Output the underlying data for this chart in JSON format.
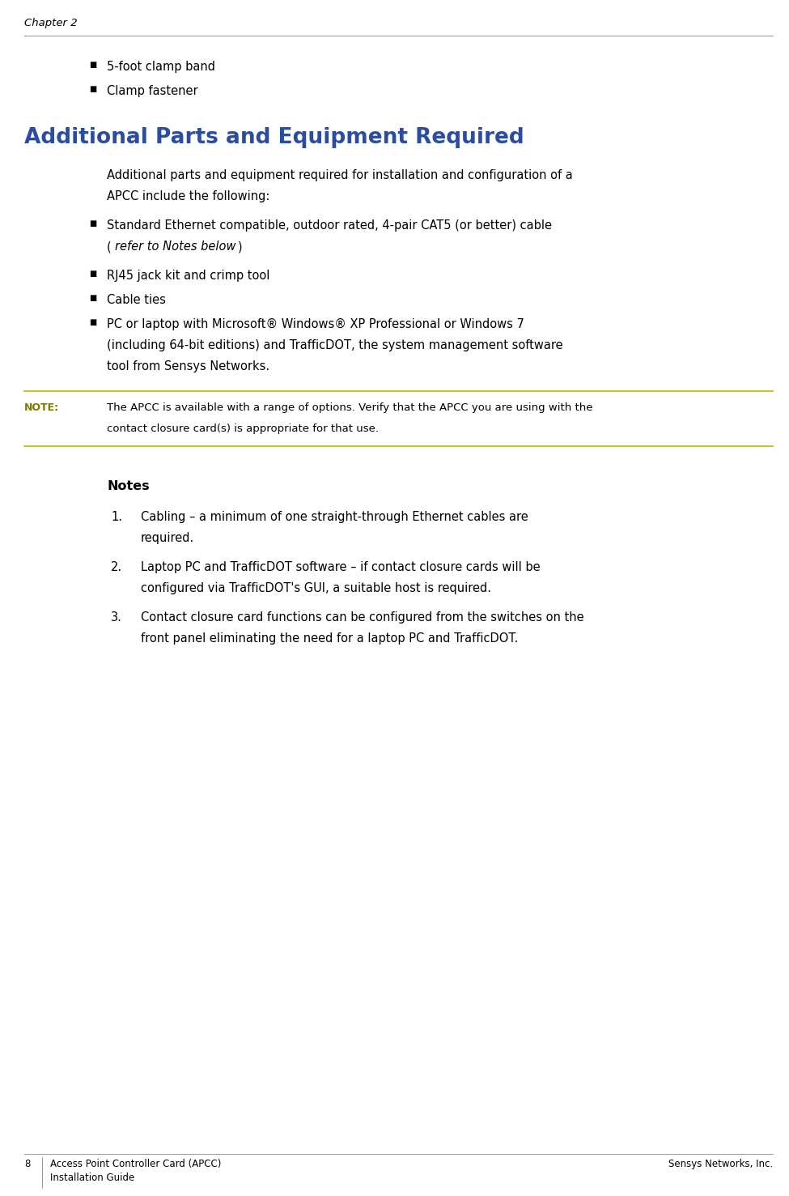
{
  "bg_color": "#ffffff",
  "page_width": 9.75,
  "page_height": 14.77,
  "dpi": 100,
  "text_color": "#000000",
  "chapter_header": "Chapter 2",
  "chapter_font_size": 9.5,
  "top_rule_color": "#999999",
  "section_title": "Additional Parts and Equipment Required",
  "section_title_size": 19,
  "section_title_color": "#2b4da0",
  "footer_page_num": "8",
  "footer_left1": "Access Point Controller Card (APCC)",
  "footer_left2": "Installation Guide",
  "footer_right": "Sensys Networks, Inc.",
  "footer_font_size": 8.5,
  "bullet_items_top": [
    "5-foot clamp band",
    "Clamp fastener"
  ],
  "intro_text_line1": "Additional parts and equipment required for installation and configuration of a",
  "intro_text_line2": "APCC include the following:",
  "note_label": "Note:",
  "note_label_caps": "NOTE:",
  "note_color": "#7a7a00",
  "note_text_line1": "The APCC is available with a range of options. Verify that the APCC you are using with the",
  "note_text_line2": "contact closure card(s) is appropriate for that use.",
  "note_rule_color": "#b8b800",
  "notes_heading": "Notes",
  "numbered_item1_line1": "Cabling – a minimum of one straight-through Ethernet cables are",
  "numbered_item1_line2": "required.",
  "numbered_item2_line1": "Laptop PC and TrafficDOT software – if contact closure cards will be",
  "numbered_item2_line2": "configured via TrafficDOT's GUI, a suitable host is required.",
  "numbered_item3_line1": "Contact closure card functions can be configured from the switches on the",
  "numbered_item3_line2": "front panel eliminating the need for a laptop PC and TrafficDOT."
}
